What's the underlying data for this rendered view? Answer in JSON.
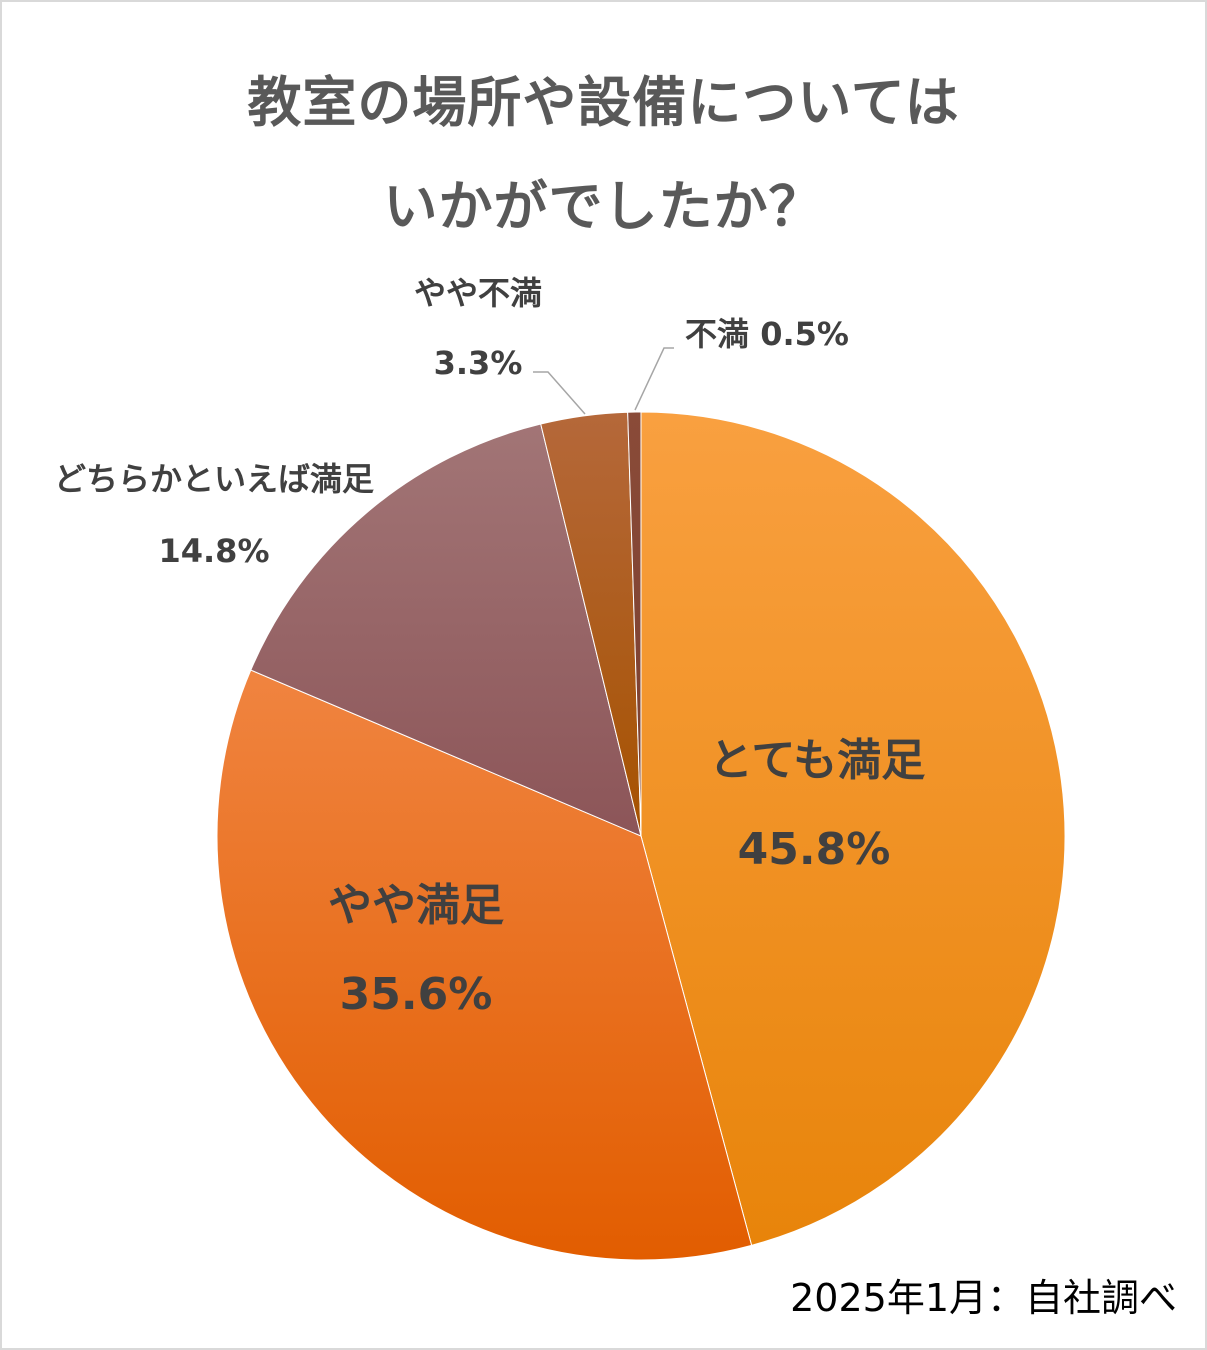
{
  "title_lines": [
    "教室の場所や設備については",
    "いかがでしたか？"
  ],
  "source_note": "2025年1月：自社調べ",
  "chart_data": {
    "type": "pie",
    "title": "教室の場所や設備については いかがでしたか？",
    "slices": [
      {
        "label": "とても満足",
        "value": 45.8,
        "value_label": "45.8%",
        "color_top": "#f9a040",
        "color_bottom": "#e8840a"
      },
      {
        "label": "やや満足",
        "value": 35.6,
        "value_label": "35.6%",
        "color_top": "#f08440",
        "color_bottom": "#e25d00"
      },
      {
        "label": "どちらかといえば満足",
        "value": 14.8,
        "value_label": "14.8%",
        "color_top": "#a27576",
        "color_bottom": "#8c5558"
      },
      {
        "label": "やや不満",
        "value": 3.3,
        "value_label": "3.3%",
        "color_top": "#b5683a",
        "color_bottom": "#a65200"
      },
      {
        "label": "不満",
        "value": 0.5,
        "value_label": "0.5%",
        "color_top": "#8a4b38",
        "color_bottom": "#7a3f30"
      }
    ],
    "label_placement": [
      "inside",
      "inside",
      "outside",
      "outside",
      "outside"
    ]
  }
}
